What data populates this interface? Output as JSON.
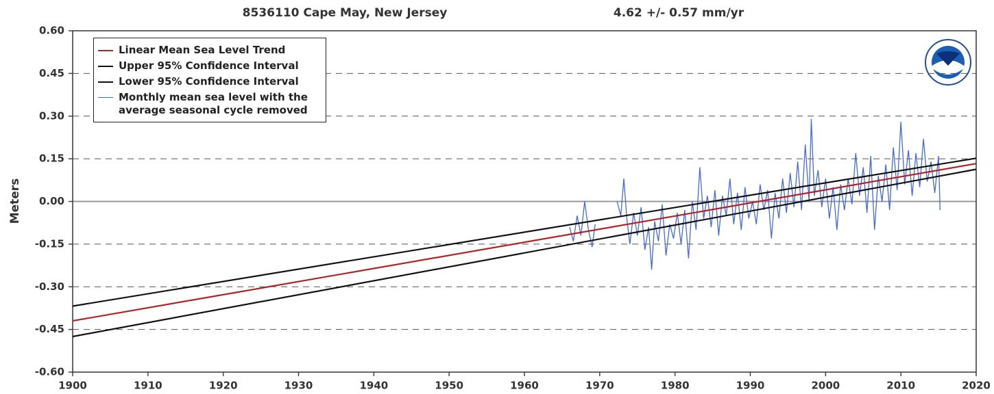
{
  "chart_data": {
    "type": "line",
    "title": "8536110 Cape May, New Jersey",
    "subtitle": "4.62 +/-  0.57 mm/yr",
    "y_label": "Meters",
    "xlim": [
      1900,
      2020
    ],
    "xticks": [
      1900,
      1910,
      1920,
      1930,
      1940,
      1950,
      1960,
      1970,
      1980,
      1990,
      2000,
      2010,
      2020
    ],
    "ylim": [
      -0.6,
      0.6
    ],
    "yticks": [
      {
        "value": -0.6,
        "label": "-0.60"
      },
      {
        "value": -0.45,
        "label": "-0.45"
      },
      {
        "value": -0.3,
        "label": "-0.30"
      },
      {
        "value": -0.15,
        "label": "-0.15"
      },
      {
        "value": 0,
        "label": "0.00"
      },
      {
        "value": 0.15,
        "label": "0.15"
      },
      {
        "value": 0.3,
        "label": "0.30"
      },
      {
        "value": 0.45,
        "label": "0.45"
      },
      {
        "value": 0.6,
        "label": "0.60"
      }
    ],
    "grid": true,
    "legend": "upper left",
    "series": [
      {
        "name": "Linear Mean Sea Level Trend",
        "color": "#b22222",
        "x": [
          1900,
          2020
        ],
        "values": [
          -0.42,
          0.133
        ]
      },
      {
        "name": "Upper 95% Confidence Interval",
        "color": "#111111",
        "x": [
          1900,
          2020
        ],
        "values": [
          -0.368,
          0.152
        ]
      },
      {
        "name": "Lower 95% Confidence Interval",
        "color": "#111111",
        "x": [
          1900,
          2020
        ],
        "values": [
          -0.475,
          0.113
        ]
      },
      {
        "name": "Monthly mean sea level with the average seasonal cycle removed",
        "color": "#4169e1",
        "x": [
          1966.0,
          1966.5,
          1967.0,
          1967.5,
          1968.0,
          1968.5,
          1969.0,
          1969.4,
          1970.5,
          1972.3,
          1972.8,
          1973.2,
          1973.6,
          1974.0,
          1974.5,
          1975.0,
          1975.5,
          1976.0,
          1976.5,
          1976.9,
          1977.3,
          1977.8,
          1978.3,
          1978.8,
          1979.3,
          1979.8,
          1980.3,
          1980.8,
          1981.3,
          1981.8,
          1982.3,
          1982.8,
          1983.3,
          1983.8,
          1984.3,
          1984.8,
          1985.3,
          1985.8,
          1986.3,
          1986.8,
          1987.3,
          1987.8,
          1988.3,
          1988.8,
          1989.3,
          1989.8,
          1990.3,
          1990.8,
          1991.3,
          1991.8,
          1992.3,
          1992.8,
          1993.3,
          1993.8,
          1994.3,
          1994.8,
          1995.3,
          1995.8,
          1996.3,
          1996.8,
          1997.3,
          1997.8,
          1998.1,
          1998.5,
          1999.0,
          1999.5,
          2000.0,
          2000.5,
          2001.0,
          2001.5,
          2002.0,
          2002.5,
          2003.0,
          2003.5,
          2004.0,
          2004.5,
          2005.0,
          2005.5,
          2006.0,
          2006.5,
          2007.0,
          2007.5,
          2008.0,
          2008.5,
          2009.0,
          2009.5,
          2010.0,
          2010.5,
          2011.0,
          2011.5,
          2012.0,
          2012.5,
          2013.0,
          2013.5,
          2014.0,
          2014.5,
          2015.0,
          2015.2
        ],
        "values": [
          -0.09,
          -0.14,
          -0.05,
          -0.12,
          0.0,
          -0.1,
          -0.16,
          -0.08,
          null,
          0.0,
          -0.05,
          0.08,
          -0.06,
          -0.15,
          -0.04,
          -0.12,
          -0.02,
          -0.17,
          -0.09,
          -0.24,
          -0.07,
          -0.14,
          -0.01,
          -0.19,
          -0.08,
          -0.13,
          -0.04,
          -0.15,
          -0.03,
          -0.2,
          0.0,
          -0.1,
          0.12,
          -0.06,
          0.02,
          -0.09,
          0.04,
          -0.12,
          0.02,
          -0.05,
          0.08,
          -0.08,
          0.03,
          -0.1,
          0.05,
          -0.06,
          0.0,
          -0.08,
          0.06,
          -0.03,
          0.04,
          -0.13,
          0.03,
          -0.06,
          0.08,
          -0.04,
          0.1,
          -0.02,
          0.14,
          -0.03,
          0.2,
          0.0,
          0.29,
          0.02,
          0.11,
          -0.02,
          0.08,
          -0.06,
          0.05,
          -0.1,
          0.06,
          -0.03,
          0.08,
          -0.01,
          0.17,
          0.02,
          0.12,
          -0.04,
          0.16,
          -0.1,
          0.09,
          0.0,
          0.13,
          -0.03,
          0.19,
          0.04,
          0.28,
          0.06,
          0.18,
          0.02,
          0.17,
          0.05,
          0.22,
          0.07,
          0.14,
          0.03,
          0.16,
          -0.03
        ]
      }
    ]
  }
}
